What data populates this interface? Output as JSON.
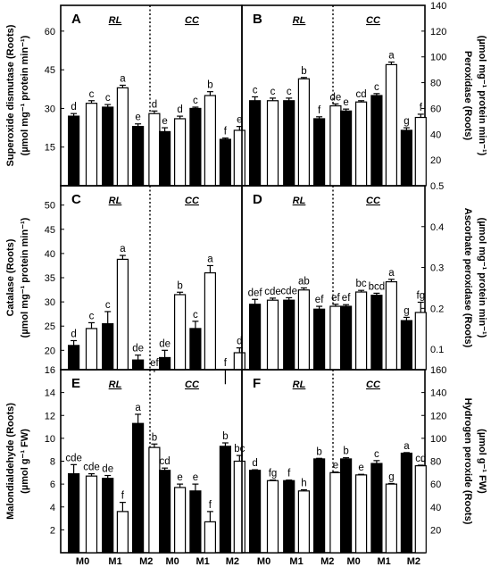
{
  "x_categories": [
    "M0",
    "M1",
    "M2",
    "M0",
    "M1",
    "M2"
  ],
  "chart_data": [
    {
      "panel": "A",
      "type": "bar",
      "groups": [
        "RL",
        "CC"
      ],
      "ylabel_lines": [
        "Superoxide dismutase (Roots)",
        "(µmol mg⁻¹ protein min⁻¹)"
      ],
      "yaxis_side": "left",
      "ylim": [
        0,
        70
      ],
      "yticks": [
        15,
        30,
        45,
        60
      ],
      "categories": [
        "M0",
        "M1",
        "M2"
      ],
      "bars": [
        {
          "group": "RL",
          "category": "M0",
          "fill": "black",
          "value": 27,
          "error": 1.0,
          "label": "d"
        },
        {
          "group": "RL",
          "category": "M0",
          "fill": "white",
          "value": 32,
          "error": 1.0,
          "label": "c"
        },
        {
          "group": "RL",
          "category": "M1",
          "fill": "black",
          "value": 30.5,
          "error": 1.0,
          "label": "c"
        },
        {
          "group": "RL",
          "category": "M1",
          "fill": "white",
          "value": 38,
          "error": 1.0,
          "label": "a"
        },
        {
          "group": "RL",
          "category": "M2",
          "fill": "black",
          "value": 23,
          "error": 1.0,
          "label": "e"
        },
        {
          "group": "RL",
          "category": "M2",
          "fill": "white",
          "value": 28,
          "error": 1.0,
          "label": "d"
        },
        {
          "group": "CC",
          "category": "M0",
          "fill": "black",
          "value": 21,
          "error": 1.5,
          "label": "e"
        },
        {
          "group": "CC",
          "category": "M0",
          "fill": "white",
          "value": 26,
          "error": 1.0,
          "label": "d"
        },
        {
          "group": "CC",
          "category": "M1",
          "fill": "black",
          "value": 30,
          "error": 0.5,
          "label": "c"
        },
        {
          "group": "CC",
          "category": "M1",
          "fill": "white",
          "value": 35,
          "error": 1.5,
          "label": "b"
        },
        {
          "group": "CC",
          "category": "M2",
          "fill": "black",
          "value": 18,
          "error": 0.5,
          "label": "f"
        },
        {
          "group": "CC",
          "category": "M2",
          "fill": "white",
          "value": 21.5,
          "error": 1.5,
          "label": "e"
        }
      ]
    },
    {
      "panel": "B",
      "type": "bar",
      "groups": [
        "RL",
        "CC"
      ],
      "ylabel_lines": [
        "Peroxidase (Roots)",
        "(µmol mg⁻¹ protein min⁻¹)"
      ],
      "yaxis_side": "right",
      "ylim": [
        0,
        140
      ],
      "yticks": [
        20,
        40,
        60,
        80,
        100,
        120,
        140
      ],
      "categories": [
        "M0",
        "M1",
        "M2"
      ],
      "bars": [
        {
          "group": "RL",
          "category": "M0",
          "fill": "black",
          "value": 66,
          "error": 3,
          "label": "c"
        },
        {
          "group": "RL",
          "category": "M0",
          "fill": "white",
          "value": 66,
          "error": 2,
          "label": "c"
        },
        {
          "group": "RL",
          "category": "M1",
          "fill": "black",
          "value": 66,
          "error": 2,
          "label": "c"
        },
        {
          "group": "RL",
          "category": "M1",
          "fill": "white",
          "value": 83,
          "error": 1,
          "label": "b"
        },
        {
          "group": "RL",
          "category": "M2",
          "fill": "black",
          "value": 52,
          "error": 1.5,
          "label": "f"
        },
        {
          "group": "RL",
          "category": "M2",
          "fill": "white",
          "value": 62,
          "error": 1.5,
          "label": "de"
        },
        {
          "group": "CC",
          "category": "M0",
          "fill": "black",
          "value": 58,
          "error": 1.5,
          "label": "e"
        },
        {
          "group": "CC",
          "category": "M0",
          "fill": "white",
          "value": 65,
          "error": 1,
          "label": "cd"
        },
        {
          "group": "CC",
          "category": "M1",
          "fill": "black",
          "value": 70,
          "error": 1.5,
          "label": "c"
        },
        {
          "group": "CC",
          "category": "M1",
          "fill": "white",
          "value": 94,
          "error": 2,
          "label": "a"
        },
        {
          "group": "CC",
          "category": "M2",
          "fill": "black",
          "value": 43,
          "error": 2,
          "label": "g"
        },
        {
          "group": "CC",
          "category": "M2",
          "fill": "white",
          "value": 53,
          "error": 2.5,
          "label": "f"
        }
      ]
    },
    {
      "panel": "C",
      "type": "bar",
      "groups": [
        "RL",
        "CC"
      ],
      "ylabel_lines": [
        "Catalase (Roots)",
        "(µmol mg⁻¹ protein min⁻¹)"
      ],
      "yaxis_side": "left",
      "ylim": [
        16,
        54
      ],
      "yticks": [
        16,
        20,
        25,
        30,
        35,
        40,
        45,
        50
      ],
      "categories": [
        "M0",
        "M1",
        "M2"
      ],
      "bars": [
        {
          "group": "RL",
          "category": "M0",
          "fill": "black",
          "value": 21,
          "error": 1.0,
          "label": "d"
        },
        {
          "group": "RL",
          "category": "M0",
          "fill": "white",
          "value": 24.5,
          "error": 1.2,
          "label": "c"
        },
        {
          "group": "RL",
          "category": "M1",
          "fill": "black",
          "value": 25.5,
          "error": 2.5,
          "label": "c"
        },
        {
          "group": "RL",
          "category": "M1",
          "fill": "white",
          "value": 38.8,
          "error": 0.8,
          "label": "a"
        },
        {
          "group": "RL",
          "category": "M2",
          "fill": "black",
          "value": 18,
          "error": 1.0,
          "label": "de"
        },
        {
          "group": "RL",
          "category": "M2",
          "fill": "white",
          "value": 15.5,
          "error": 0.5,
          "label": "ef"
        },
        {
          "group": "CC",
          "category": "M0",
          "fill": "black",
          "value": 18.5,
          "error": 1.5,
          "label": "de"
        },
        {
          "group": "CC",
          "category": "M0",
          "fill": "white",
          "value": 31.5,
          "error": 0.5,
          "label": "b"
        },
        {
          "group": "CC",
          "category": "M1",
          "fill": "black",
          "value": 24.5,
          "error": 1.5,
          "label": "c"
        },
        {
          "group": "CC",
          "category": "M1",
          "fill": "white",
          "value": 36,
          "error": 1.5,
          "label": "a"
        },
        {
          "group": "CC",
          "category": "M2",
          "fill": "black",
          "value": 14.5,
          "error": 1.5,
          "label": "f"
        },
        {
          "group": "CC",
          "category": "M2",
          "fill": "white",
          "value": 19.5,
          "error": 1.0,
          "label": "d"
        }
      ]
    },
    {
      "panel": "D",
      "type": "bar",
      "groups": [
        "RL",
        "CC"
      ],
      "ylabel_lines": [
        "Ascorbate peroxidase (Roots)",
        "(µmol mg⁻¹ protein min⁻¹)"
      ],
      "yaxis_side": "right",
      "ylim": [
        0.05,
        0.5
      ],
      "yticks": [
        0.1,
        0.2,
        0.3,
        0.4,
        0.5
      ],
      "ytick_labels": [
        "0.1",
        "0.2",
        "0.3",
        "0.4",
        "0.5"
      ],
      "categories": [
        "M0",
        "M1",
        "M2"
      ],
      "bars": [
        {
          "group": "RL",
          "category": "M0",
          "fill": "black",
          "value": 0.21,
          "error": 0.012,
          "label": "def"
        },
        {
          "group": "RL",
          "category": "M0",
          "fill": "white",
          "value": 0.22,
          "error": 0.005,
          "label": "cde"
        },
        {
          "group": "RL",
          "category": "M1",
          "fill": "black",
          "value": 0.22,
          "error": 0.006,
          "label": "cde"
        },
        {
          "group": "RL",
          "category": "M1",
          "fill": "white",
          "value": 0.245,
          "error": 0.005,
          "label": "ab"
        },
        {
          "group": "RL",
          "category": "M2",
          "fill": "black",
          "value": 0.198,
          "error": 0.007,
          "label": "ef"
        },
        {
          "group": "RL",
          "category": "M2",
          "fill": "white",
          "value": 0.205,
          "error": 0.005,
          "label": "ef"
        },
        {
          "group": "CC",
          "category": "M0",
          "fill": "black",
          "value": 0.205,
          "error": 0.004,
          "label": "ef"
        },
        {
          "group": "CC",
          "category": "M0",
          "fill": "white",
          "value": 0.24,
          "error": 0.004,
          "label": "bc"
        },
        {
          "group": "CC",
          "category": "M1",
          "fill": "black",
          "value": 0.232,
          "error": 0.005,
          "label": "bcd"
        },
        {
          "group": "CC",
          "category": "M1",
          "fill": "white",
          "value": 0.265,
          "error": 0.006,
          "label": "a"
        },
        {
          "group": "CC",
          "category": "M2",
          "fill": "black",
          "value": 0.17,
          "error": 0.008,
          "label": "g"
        },
        {
          "group": "CC",
          "category": "M2",
          "fill": "white",
          "value": 0.19,
          "error": 0.025,
          "label": "fg"
        }
      ]
    },
    {
      "panel": "E",
      "type": "bar",
      "groups": [
        "RL",
        "CC"
      ],
      "ylabel_lines": [
        "Malondialdehyde (Roots)",
        "(µmol g⁻¹ FW)"
      ],
      "yaxis_side": "left",
      "ylim": [
        0,
        16
      ],
      "yticks": [
        2,
        4,
        6,
        8,
        10,
        12,
        14
      ],
      "categories": [
        "M0",
        "M1",
        "M2"
      ],
      "bars": [
        {
          "group": "RL",
          "category": "M0",
          "fill": "black",
          "value": 6.9,
          "error": 0.8,
          "label": "cde"
        },
        {
          "group": "RL",
          "category": "M0",
          "fill": "white",
          "value": 6.7,
          "error": 0.2,
          "label": "cde"
        },
        {
          "group": "RL",
          "category": "M1",
          "fill": "black",
          "value": 6.5,
          "error": 0.25,
          "label": "de"
        },
        {
          "group": "RL",
          "category": "M1",
          "fill": "white",
          "value": 3.6,
          "error": 0.8,
          "label": "f"
        },
        {
          "group": "RL",
          "category": "M2",
          "fill": "black",
          "value": 11.3,
          "error": 0.8,
          "label": "a"
        },
        {
          "group": "RL",
          "category": "M2",
          "fill": "white",
          "value": 9.2,
          "error": 0.3,
          "label": "b"
        },
        {
          "group": "CC",
          "category": "M0",
          "fill": "black",
          "value": 7.2,
          "error": 0.2,
          "label": "cd"
        },
        {
          "group": "CC",
          "category": "M0",
          "fill": "white",
          "value": 5.7,
          "error": 0.3,
          "label": "e"
        },
        {
          "group": "CC",
          "category": "M1",
          "fill": "black",
          "value": 5.4,
          "error": 0.6,
          "label": "e"
        },
        {
          "group": "CC",
          "category": "M1",
          "fill": "white",
          "value": 2.7,
          "error": 0.9,
          "label": "f"
        },
        {
          "group": "CC",
          "category": "M2",
          "fill": "black",
          "value": 9.3,
          "error": 0.3,
          "label": "b"
        },
        {
          "group": "CC",
          "category": "M2",
          "fill": "white",
          "value": 8,
          "error": 0.5,
          "label": "bc"
        }
      ]
    },
    {
      "panel": "F",
      "type": "bar",
      "groups": [
        "RL",
        "CC"
      ],
      "ylabel_lines": [
        "Hydrogen peroxide (Roots)",
        "(µmol g⁻¹ FW)"
      ],
      "yaxis_side": "right",
      "ylim": [
        0,
        160
      ],
      "yticks": [
        20,
        40,
        60,
        80,
        100,
        120,
        140,
        160
      ],
      "categories": [
        "M0",
        "M1",
        "M2"
      ],
      "bars": [
        {
          "group": "RL",
          "category": "M0",
          "fill": "black",
          "value": 72,
          "error": 0.5,
          "label": "d"
        },
        {
          "group": "RL",
          "category": "M0",
          "fill": "white",
          "value": 63,
          "error": 0.5,
          "label": "fg"
        },
        {
          "group": "RL",
          "category": "M1",
          "fill": "black",
          "value": 63,
          "error": 0.5,
          "label": "f"
        },
        {
          "group": "RL",
          "category": "M1",
          "fill": "white",
          "value": 54,
          "error": 1,
          "label": "h"
        },
        {
          "group": "RL",
          "category": "M2",
          "fill": "black",
          "value": 82,
          "error": 0.5,
          "label": "b"
        },
        {
          "group": "RL",
          "category": "M2",
          "fill": "white",
          "value": 70,
          "error": 0.5,
          "label": "e"
        },
        {
          "group": "CC",
          "category": "M0",
          "fill": "black",
          "value": 82,
          "error": 1,
          "label": "b"
        },
        {
          "group": "CC",
          "category": "M0",
          "fill": "white",
          "value": 68,
          "error": 0.5,
          "label": "e"
        },
        {
          "group": "CC",
          "category": "M1",
          "fill": "black",
          "value": 78,
          "error": 2.5,
          "label": "c"
        },
        {
          "group": "CC",
          "category": "M1",
          "fill": "white",
          "value": 60,
          "error": 0.5,
          "label": "g"
        },
        {
          "group": "CC",
          "category": "M2",
          "fill": "black",
          "value": 87,
          "error": 0.5,
          "label": "a"
        },
        {
          "group": "CC",
          "category": "M2",
          "fill": "white",
          "value": 76,
          "error": 0.5,
          "label": "cd"
        }
      ]
    }
  ]
}
